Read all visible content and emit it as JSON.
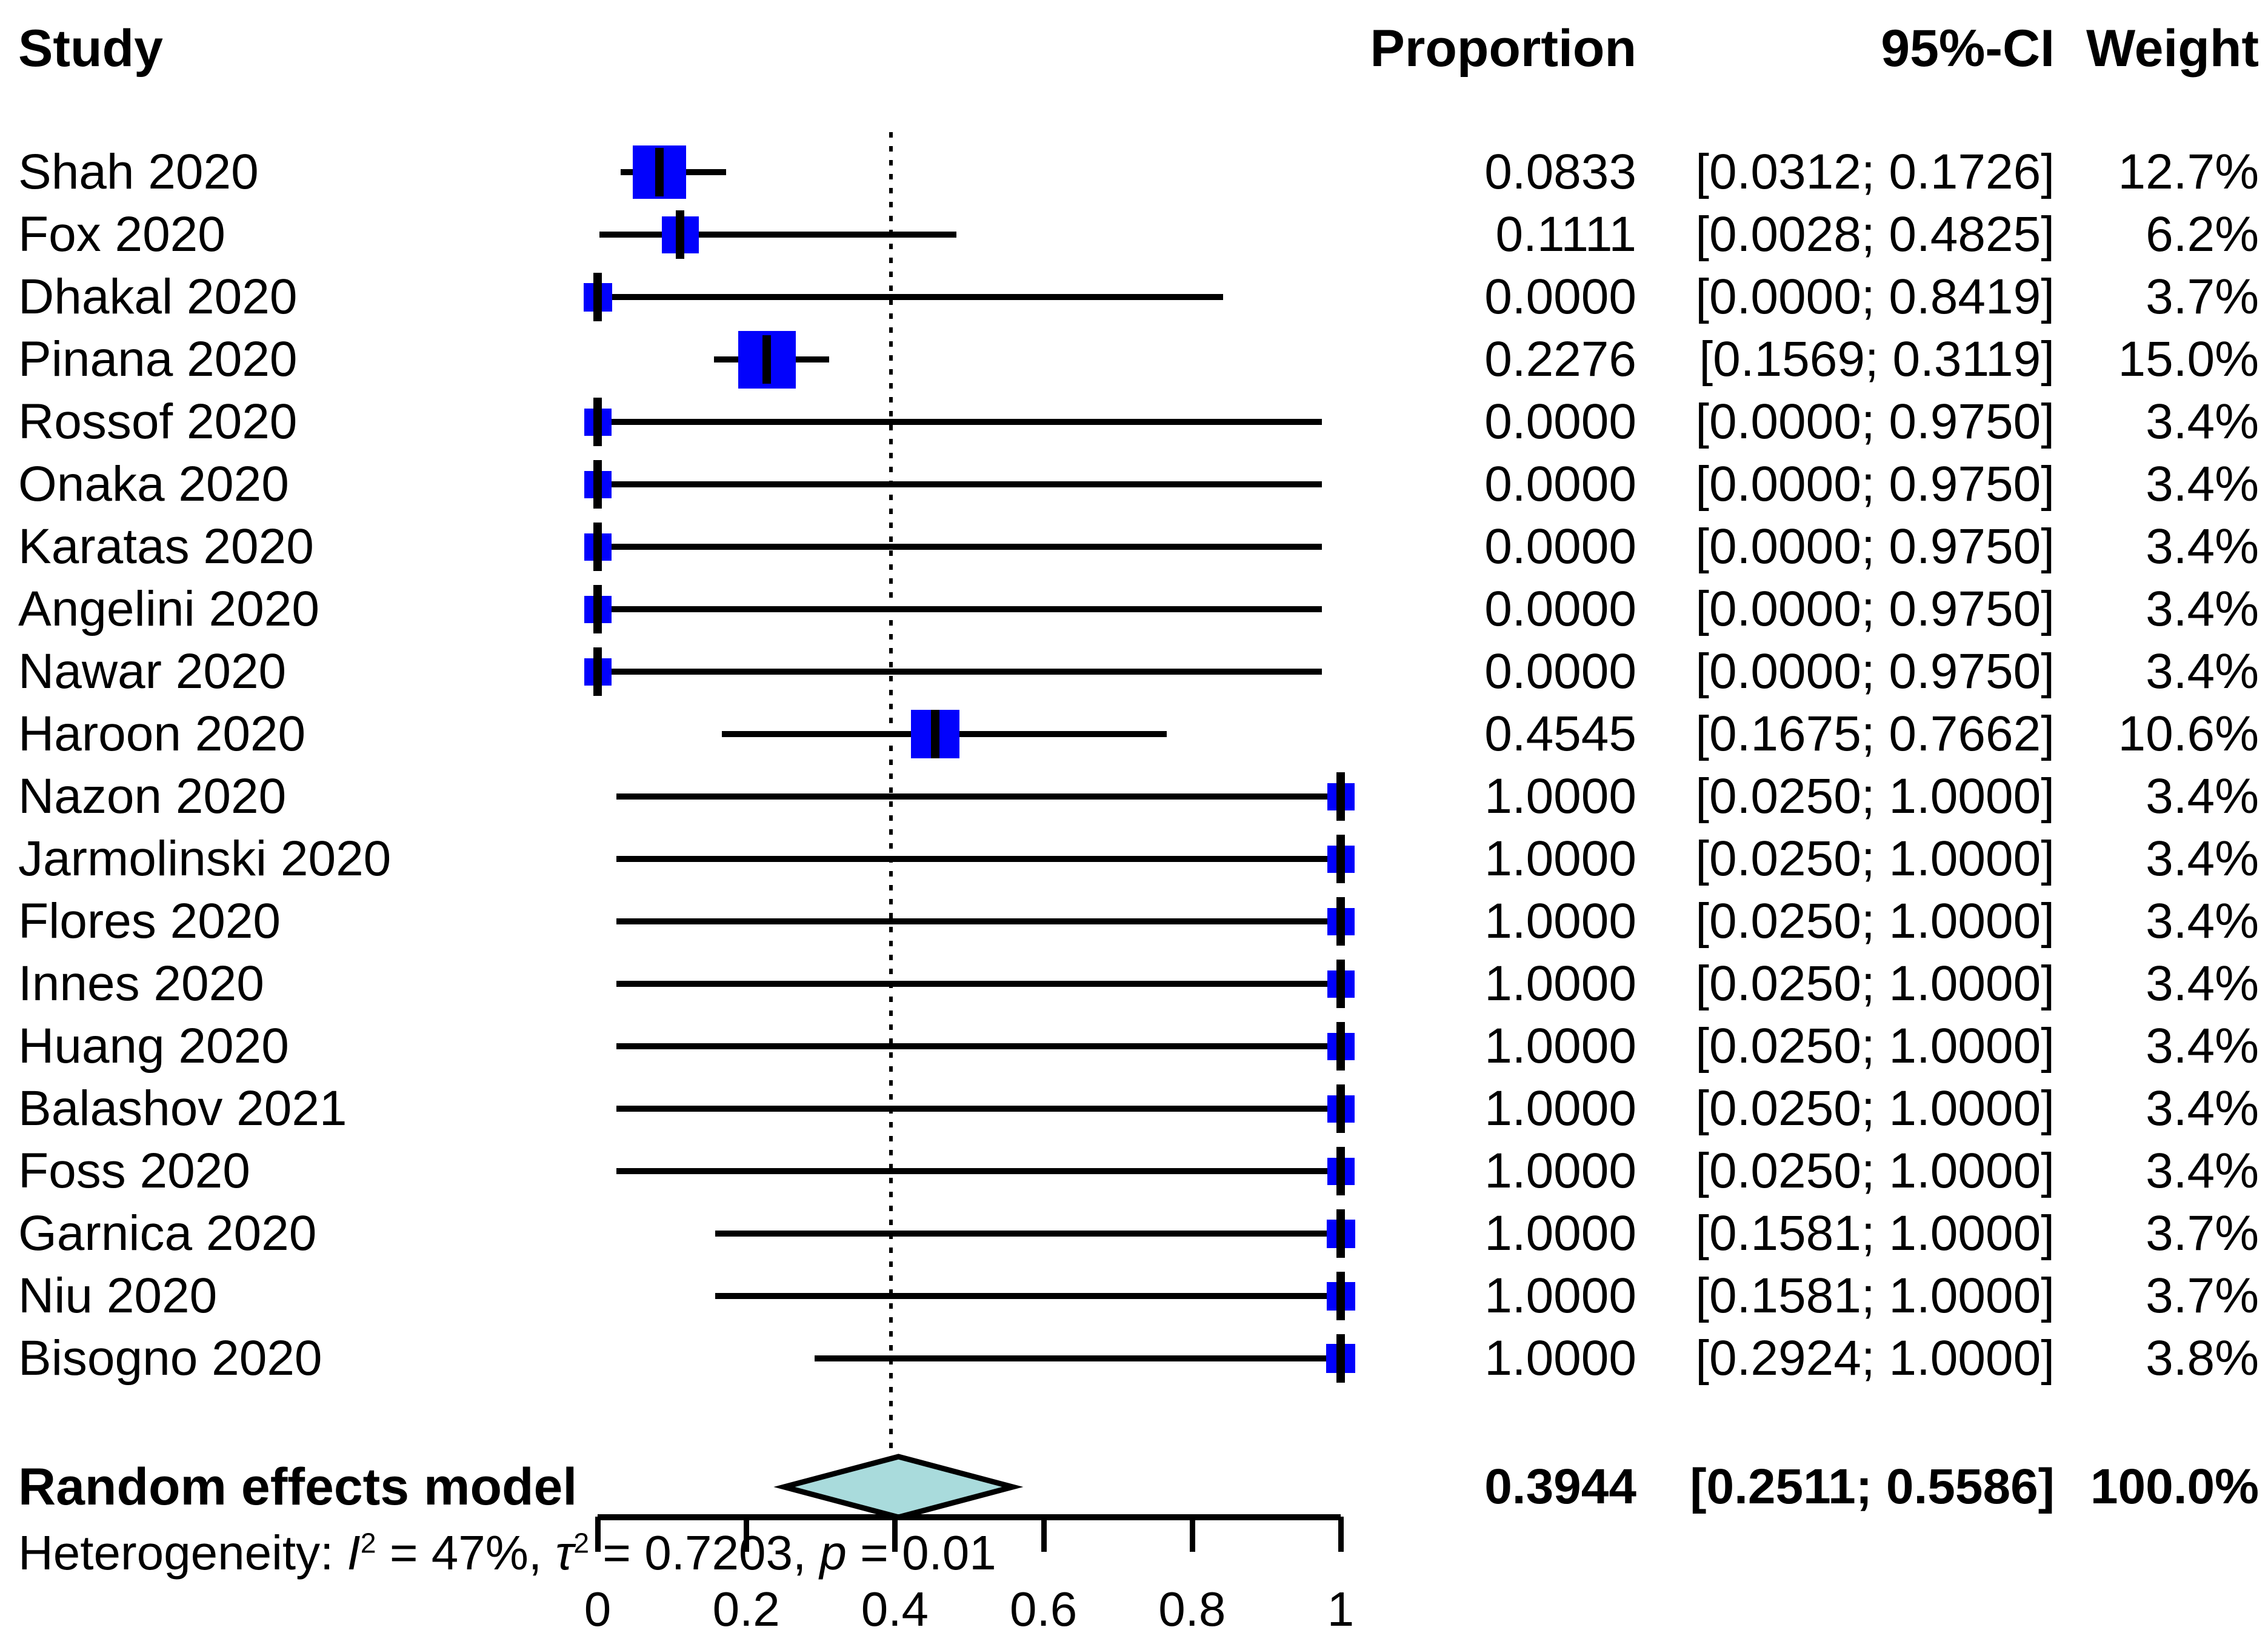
{
  "header": {
    "study": "Study",
    "proportion": "Proportion",
    "ci": "95%-CI",
    "weight": "Weight"
  },
  "chart_data": {
    "type": "forest",
    "x_axis": {
      "range": [
        0,
        1
      ],
      "tick_values": [
        0,
        0.2,
        0.4,
        0.6,
        0.8,
        1
      ],
      "tick_labels": [
        "0",
        "0.2",
        "0.4",
        "0.6",
        "0.8",
        "1"
      ]
    },
    "reference_line_at": 0.3944,
    "studies": [
      {
        "label": "Shah 2020",
        "proportion": 0.0833,
        "ci_lower": 0.0312,
        "ci_upper": 0.1726,
        "weight_pct": 12.7,
        "proportion_text": "0.0833",
        "ci_text": "[0.0312; 0.1726]",
        "weight_text": "12.7%"
      },
      {
        "label": "Fox 2020",
        "proportion": 0.1111,
        "ci_lower": 0.0028,
        "ci_upper": 0.4825,
        "weight_pct": 6.2,
        "proportion_text": "0.1111",
        "ci_text": "[0.0028; 0.4825]",
        "weight_text": "6.2%"
      },
      {
        "label": "Dhakal 2020",
        "proportion": 0.0,
        "ci_lower": 0.0,
        "ci_upper": 0.8419,
        "weight_pct": 3.7,
        "proportion_text": "0.0000",
        "ci_text": "[0.0000; 0.8419]",
        "weight_text": "3.7%"
      },
      {
        "label": "Pinana 2020",
        "proportion": 0.2276,
        "ci_lower": 0.1569,
        "ci_upper": 0.3119,
        "weight_pct": 15.0,
        "proportion_text": "0.2276",
        "ci_text": "[0.1569; 0.3119]",
        "weight_text": "15.0%"
      },
      {
        "label": "Rossof 2020",
        "proportion": 0.0,
        "ci_lower": 0.0,
        "ci_upper": 0.975,
        "weight_pct": 3.4,
        "proportion_text": "0.0000",
        "ci_text": "[0.0000; 0.9750]",
        "weight_text": "3.4%"
      },
      {
        "label": "Onaka 2020",
        "proportion": 0.0,
        "ci_lower": 0.0,
        "ci_upper": 0.975,
        "weight_pct": 3.4,
        "proportion_text": "0.0000",
        "ci_text": "[0.0000; 0.9750]",
        "weight_text": "3.4%"
      },
      {
        "label": "Karatas 2020",
        "proportion": 0.0,
        "ci_lower": 0.0,
        "ci_upper": 0.975,
        "weight_pct": 3.4,
        "proportion_text": "0.0000",
        "ci_text": "[0.0000; 0.9750]",
        "weight_text": "3.4%"
      },
      {
        "label": "Angelini 2020",
        "proportion": 0.0,
        "ci_lower": 0.0,
        "ci_upper": 0.975,
        "weight_pct": 3.4,
        "proportion_text": "0.0000",
        "ci_text": "[0.0000; 0.9750]",
        "weight_text": "3.4%"
      },
      {
        "label": "Nawar 2020",
        "proportion": 0.0,
        "ci_lower": 0.0,
        "ci_upper": 0.975,
        "weight_pct": 3.4,
        "proportion_text": "0.0000",
        "ci_text": "[0.0000; 0.9750]",
        "weight_text": "3.4%"
      },
      {
        "label": "Haroon 2020",
        "proportion": 0.4545,
        "ci_lower": 0.1675,
        "ci_upper": 0.7662,
        "weight_pct": 10.6,
        "proportion_text": "0.4545",
        "ci_text": "[0.1675; 0.7662]",
        "weight_text": "10.6%"
      },
      {
        "label": "Nazon 2020",
        "proportion": 1.0,
        "ci_lower": 0.025,
        "ci_upper": 1.0,
        "weight_pct": 3.4,
        "proportion_text": "1.0000",
        "ci_text": "[0.0250; 1.0000]",
        "weight_text": "3.4%"
      },
      {
        "label": "Jarmolinski 2020",
        "proportion": 1.0,
        "ci_lower": 0.025,
        "ci_upper": 1.0,
        "weight_pct": 3.4,
        "proportion_text": "1.0000",
        "ci_text": "[0.0250; 1.0000]",
        "weight_text": "3.4%"
      },
      {
        "label": "Flores 2020",
        "proportion": 1.0,
        "ci_lower": 0.025,
        "ci_upper": 1.0,
        "weight_pct": 3.4,
        "proportion_text": "1.0000",
        "ci_text": "[0.0250; 1.0000]",
        "weight_text": "3.4%"
      },
      {
        "label": "Innes 2020",
        "proportion": 1.0,
        "ci_lower": 0.025,
        "ci_upper": 1.0,
        "weight_pct": 3.4,
        "proportion_text": "1.0000",
        "ci_text": "[0.0250; 1.0000]",
        "weight_text": "3.4%"
      },
      {
        "label": "Huang 2020",
        "proportion": 1.0,
        "ci_lower": 0.025,
        "ci_upper": 1.0,
        "weight_pct": 3.4,
        "proportion_text": "1.0000",
        "ci_text": "[0.0250; 1.0000]",
        "weight_text": "3.4%"
      },
      {
        "label": "Balashov 2021",
        "proportion": 1.0,
        "ci_lower": 0.025,
        "ci_upper": 1.0,
        "weight_pct": 3.4,
        "proportion_text": "1.0000",
        "ci_text": "[0.0250; 1.0000]",
        "weight_text": "3.4%"
      },
      {
        "label": "Foss 2020",
        "proportion": 1.0,
        "ci_lower": 0.025,
        "ci_upper": 1.0,
        "weight_pct": 3.4,
        "proportion_text": "1.0000",
        "ci_text": "[0.0250; 1.0000]",
        "weight_text": "3.4%"
      },
      {
        "label": "Garnica 2020",
        "proportion": 1.0,
        "ci_lower": 0.1581,
        "ci_upper": 1.0,
        "weight_pct": 3.7,
        "proportion_text": "1.0000",
        "ci_text": "[0.1581; 1.0000]",
        "weight_text": "3.7%"
      },
      {
        "label": "Niu 2020",
        "proportion": 1.0,
        "ci_lower": 0.1581,
        "ci_upper": 1.0,
        "weight_pct": 3.7,
        "proportion_text": "1.0000",
        "ci_text": "[0.1581; 1.0000]",
        "weight_text": "3.7%"
      },
      {
        "label": "Bisogno 2020",
        "proportion": 1.0,
        "ci_lower": 0.2924,
        "ci_upper": 1.0,
        "weight_pct": 3.8,
        "proportion_text": "1.0000",
        "ci_text": "[0.2924; 1.0000]",
        "weight_text": "3.8%"
      }
    ],
    "summary": {
      "label": "Random effects model",
      "proportion": 0.3944,
      "ci_lower": 0.2511,
      "ci_upper": 0.5586,
      "proportion_text": "0.3944",
      "ci_text": "[0.2511; 0.5586]",
      "weight_text": "100.0%"
    },
    "heterogeneity": {
      "prefix": "Heterogeneity: ",
      "i_label": "I",
      "i_sup": "2",
      "i_val": " = 47%, ",
      "tau_label": "τ",
      "tau_sup": "2",
      "tau_val": " = 0.7203, ",
      "p_label": "p",
      "p_val": " = 0.01"
    }
  },
  "colors": {
    "square": "#0202fc",
    "diamond_fill": "#a9dbdc",
    "diamond_border": "#000000",
    "line": "#000000",
    "text": "#000000",
    "background": "#ffffff"
  }
}
